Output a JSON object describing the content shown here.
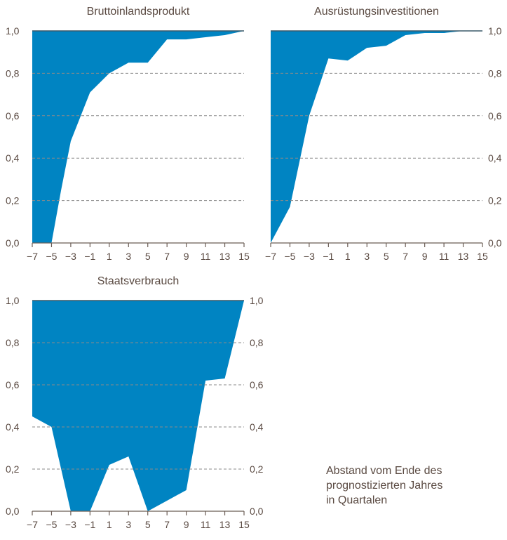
{
  "chart_data": [
    {
      "type": "area",
      "title": "Bruttoinlandsprodukt",
      "x": [
        -7,
        -5,
        -4,
        -3,
        -1,
        1,
        3,
        5,
        7,
        9,
        11,
        13,
        15
      ],
      "series": [
        {
          "values": [
            0.0,
            0.0,
            0.25,
            0.48,
            0.71,
            0.8,
            0.85,
            0.85,
            0.96,
            0.96,
            0.97,
            0.98,
            1.0
          ]
        }
      ],
      "xlim": [
        -7,
        15
      ],
      "ylim": [
        0,
        1
      ],
      "xticks": [
        "-7",
        "-5",
        "-3",
        "-1",
        "1",
        "3",
        "5",
        "7",
        "9",
        "11",
        "13",
        "15"
      ],
      "yticks": [
        "0,0",
        "0,2",
        "0,4",
        "0,6",
        "0,8",
        "1,0"
      ],
      "yaxis_side": "left",
      "grid": "horizontal dashed",
      "color": "#0084c2"
    },
    {
      "type": "area",
      "title": "Ausrüstungsinvestitionen",
      "x": [
        -7,
        -5,
        -3,
        -1,
        1,
        3,
        5,
        7,
        9,
        11,
        13,
        15
      ],
      "series": [
        {
          "values": [
            0.0,
            0.17,
            0.6,
            0.87,
            0.86,
            0.92,
            0.93,
            0.98,
            0.99,
            0.99,
            1.0,
            1.0
          ]
        }
      ],
      "xlim": [
        -7,
        15
      ],
      "ylim": [
        0,
        1
      ],
      "xticks": [
        "-7",
        "-5",
        "-3",
        "-1",
        "1",
        "3",
        "5",
        "7",
        "9",
        "11",
        "13",
        "15"
      ],
      "yticks": [
        "0,0",
        "0,2",
        "0,4",
        "0,6",
        "0,8",
        "1,0"
      ],
      "yaxis_side": "right",
      "grid": "horizontal dashed",
      "color": "#0084c2"
    },
    {
      "type": "area",
      "title": "Staatsverbrauch",
      "x": [
        -7,
        -5,
        -3,
        -1,
        1,
        3,
        5,
        7,
        9,
        11,
        13,
        15
      ],
      "series": [
        {
          "values": [
            0.45,
            0.4,
            0.0,
            0.0,
            0.22,
            0.26,
            0.0,
            0.05,
            0.1,
            0.62,
            0.63,
            1.0
          ]
        }
      ],
      "xlim": [
        -7,
        15
      ],
      "ylim": [
        0,
        1
      ],
      "xticks": [
        "-7",
        "-5",
        "-3",
        "-1",
        "1",
        "3",
        "5",
        "7",
        "9",
        "11",
        "13",
        "15"
      ],
      "yticks": [
        "0,0",
        "0,2",
        "0,4",
        "0,6",
        "0,8",
        "1,0"
      ],
      "yaxis_side": "both",
      "grid": "horizontal dashed",
      "color": "#0084c2"
    }
  ],
  "note": {
    "line1": "Abstand vom Ende des",
    "line2": "prognostizierten Jahres",
    "line3": "in Quartalen"
  }
}
